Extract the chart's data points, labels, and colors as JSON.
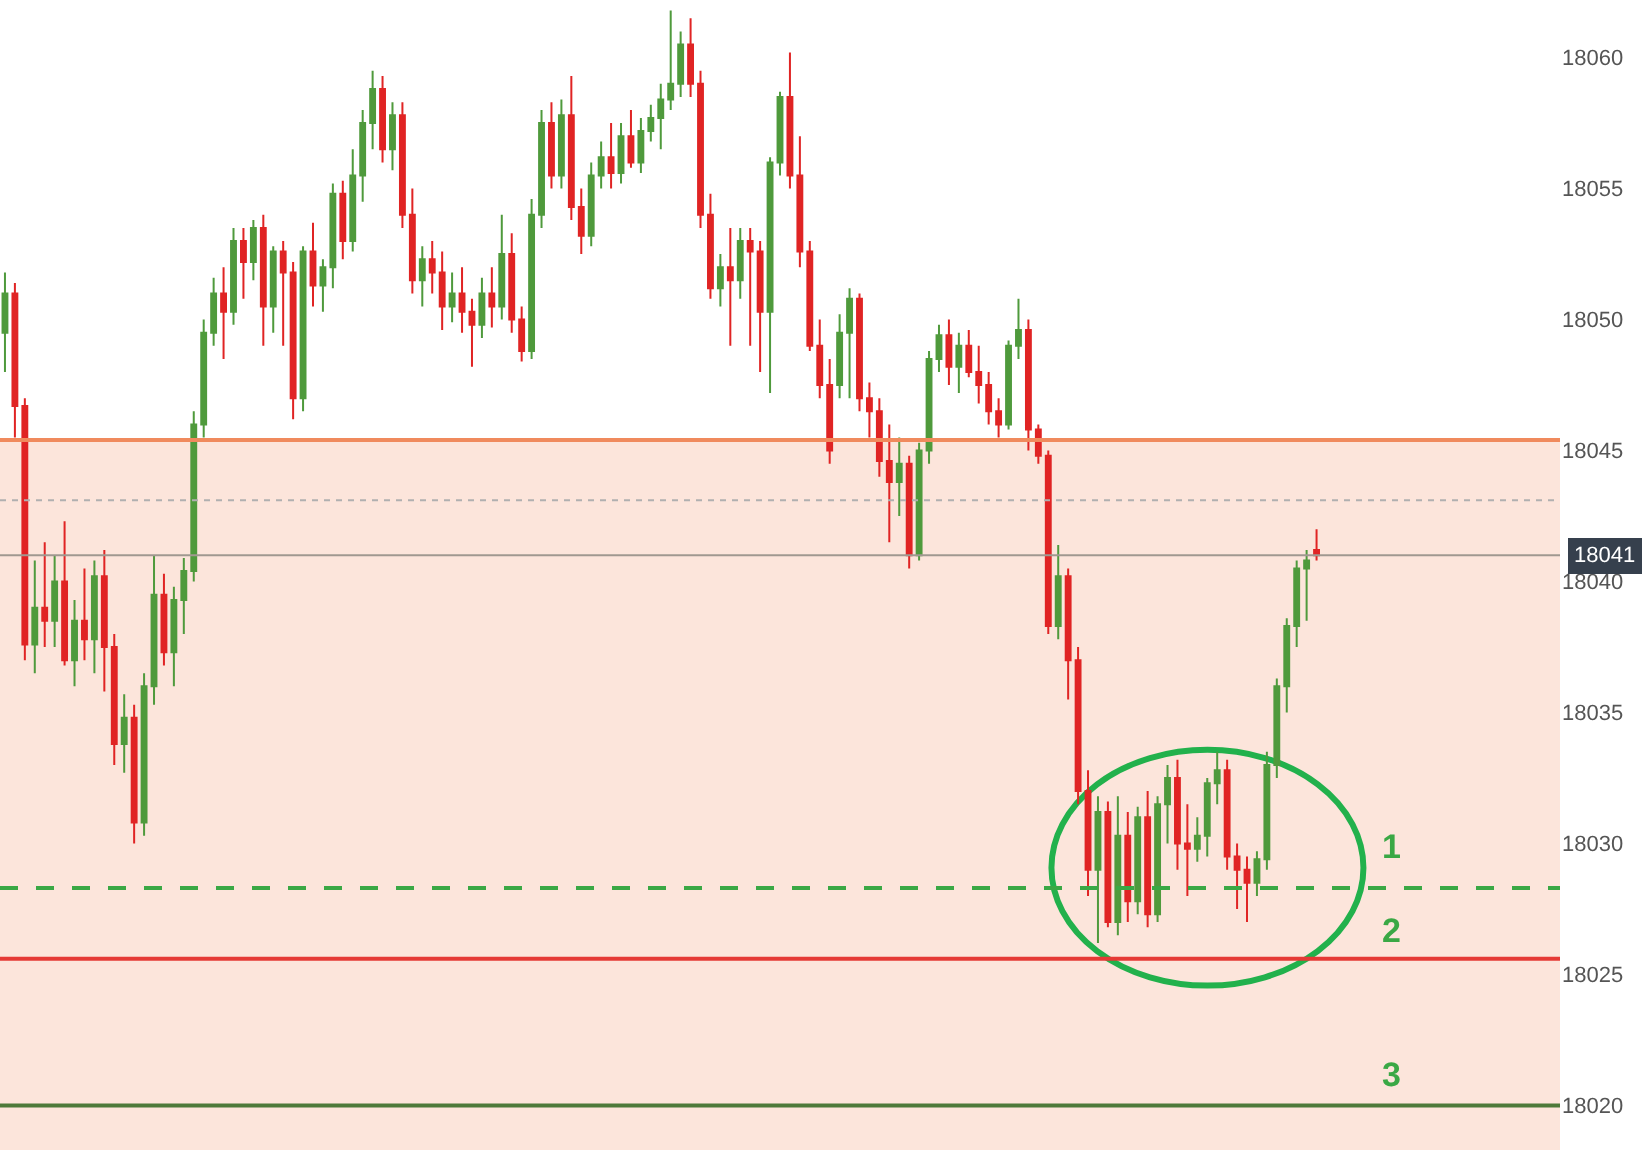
{
  "chart_data": {
    "type": "candlestick",
    "categories": [
      null,
      null,
      null,
      null,
      null,
      null,
      null,
      null,
      null,
      null,
      null,
      null,
      null,
      null,
      null,
      null,
      null,
      null,
      null,
      null,
      null,
      null,
      null,
      null,
      null,
      null,
      null,
      null,
      null,
      null,
      null,
      null,
      null,
      null,
      null,
      null,
      null,
      null,
      null,
      null,
      null,
      null,
      null,
      null,
      null,
      null,
      null,
      null,
      null,
      null,
      null,
      null,
      null,
      null,
      null,
      null,
      null,
      null,
      null,
      null,
      null,
      null,
      null,
      null,
      null,
      null,
      null,
      null,
      null,
      null,
      null,
      null,
      null,
      null,
      null,
      null,
      null,
      null,
      null,
      null,
      null,
      null,
      null,
      null,
      null,
      null,
      null,
      null,
      null,
      null,
      null,
      null,
      null,
      null,
      null,
      null,
      null,
      null,
      null,
      null,
      null,
      null,
      null,
      null,
      null,
      null,
      null,
      null,
      null,
      null,
      null,
      null,
      null,
      null,
      null,
      null,
      null,
      null,
      null,
      null,
      null,
      null,
      null,
      null,
      null,
      null,
      null,
      null,
      null,
      null,
      null,
      null,
      null,
      null,
      null,
      null,
      null,
      null,
      null,
      null,
      null,
      null,
      null,
      null,
      null,
      null,
      null,
      null,
      null,
      null,
      null,
      null,
      null,
      null,
      null,
      null,
      null
    ],
    "ohlc": [
      [
        18049.5,
        18051.8,
        18048,
        18051
      ],
      [
        18051,
        18051.4,
        18045.5,
        18046.7
      ],
      [
        18046.7,
        18047,
        18037,
        18037.6
      ],
      [
        18037.6,
        18040.8,
        18036.5,
        18039
      ],
      [
        18039,
        18041.5,
        18037.5,
        18038.5
      ],
      [
        18038.5,
        18041,
        18037.5,
        18040
      ],
      [
        18040,
        18042.3,
        18036.8,
        18037
      ],
      [
        18037,
        18039.3,
        18036,
        18038.5
      ],
      [
        18038.5,
        18040.5,
        18037,
        18037.8
      ],
      [
        18037.8,
        18040.8,
        18036.5,
        18040.2
      ],
      [
        18040.2,
        18041.2,
        18035.8,
        18037.5
      ],
      [
        18037.5,
        18038,
        18033,
        18033.8
      ],
      [
        18033.8,
        18035.7,
        18032.7,
        18034.8
      ],
      [
        18034.8,
        18035.3,
        18030,
        18030.8
      ],
      [
        18030.8,
        18036.5,
        18030.3,
        18036
      ],
      [
        18036,
        18041,
        18035.3,
        18039.5
      ],
      [
        18039.5,
        18040.3,
        18036.8,
        18037.3
      ],
      [
        18037.3,
        18039.8,
        18036,
        18039.3
      ],
      [
        18039.3,
        18040.9,
        18038,
        18040.4
      ],
      [
        18040.4,
        18046.5,
        18040,
        18046
      ],
      [
        18046,
        18050,
        18045.5,
        18049.5
      ],
      [
        18049.5,
        18051.6,
        18049,
        18051
      ],
      [
        18051,
        18052,
        18048.5,
        18050.3
      ],
      [
        18050.3,
        18053.5,
        18049.8,
        18053
      ],
      [
        18053,
        18053.5,
        18050.8,
        18052.2
      ],
      [
        18052.2,
        18053.8,
        18051.5,
        18053.5
      ],
      [
        18053.5,
        18054,
        18049,
        18050.5
      ],
      [
        18050.5,
        18052.8,
        18049.5,
        18052.6
      ],
      [
        18052.6,
        18053,
        18049,
        18051.8
      ],
      [
        18051.8,
        18052.2,
        18046.2,
        18047
      ],
      [
        18047,
        18052.8,
        18046.5,
        18052.6
      ],
      [
        18052.6,
        18053.7,
        18050.5,
        18051.3
      ],
      [
        18051.3,
        18052.3,
        18050.3,
        18052
      ],
      [
        18052,
        18055.2,
        18051.2,
        18054.8
      ],
      [
        18054.8,
        18055.3,
        18052.3,
        18053
      ],
      [
        18053,
        18056.5,
        18052.6,
        18055.5
      ],
      [
        18055.5,
        18058,
        18054.5,
        18057.5
      ],
      [
        18057.5,
        18059.5,
        18056.5,
        18058.8
      ],
      [
        18058.8,
        18059.3,
        18056,
        18056.5
      ],
      [
        18056.5,
        18058.3,
        18055.7,
        18057.8
      ],
      [
        18057.8,
        18058.3,
        18053.5,
        18054
      ],
      [
        18054,
        18055,
        18051,
        18051.5
      ],
      [
        18051.5,
        18052.8,
        18050.5,
        18052.3
      ],
      [
        18052.3,
        18053,
        18051,
        18051.8
      ],
      [
        18051.8,
        18052.6,
        18049.6,
        18050.5
      ],
      [
        18050.5,
        18051.8,
        18049.9,
        18051
      ],
      [
        18051,
        18052,
        18049.5,
        18050.3
      ],
      [
        18050.3,
        18050.8,
        18048.2,
        18049.8
      ],
      [
        18049.8,
        18051.6,
        18049.3,
        18051
      ],
      [
        18051,
        18052,
        18049.7,
        18050.5
      ],
      [
        18050.5,
        18054,
        18050,
        18052.5
      ],
      [
        18052.5,
        18053.3,
        18049.5,
        18050
      ],
      [
        18050,
        18050.5,
        18048.4,
        18048.8
      ],
      [
        18048.8,
        18054.6,
        18048.5,
        18054
      ],
      [
        18054,
        18058,
        18053.5,
        18057.5
      ],
      [
        18057.5,
        18058.3,
        18055,
        18055.5
      ],
      [
        18055.5,
        18058.4,
        18055,
        18057.8
      ],
      [
        18057.8,
        18059.3,
        18053.8,
        18054.3
      ],
      [
        18054.3,
        18055,
        18052.5,
        18053.2
      ],
      [
        18053.2,
        18056,
        18052.8,
        18055.5
      ],
      [
        18055.5,
        18056.8,
        18055,
        18056.2
      ],
      [
        18056.2,
        18057.5,
        18055,
        18055.6
      ],
      [
        18055.6,
        18057.5,
        18055.2,
        18057
      ],
      [
        18057,
        18058,
        18055.8,
        18056
      ],
      [
        18056,
        18057.7,
        18055.6,
        18057.2
      ],
      [
        18057.2,
        18058.2,
        18056.8,
        18057.7
      ],
      [
        18057.7,
        18059,
        18056.5,
        18058.4
      ],
      [
        18058.4,
        18061.8,
        18058,
        18059
      ],
      [
        18059,
        18061,
        18058.5,
        18060.5
      ],
      [
        18060.5,
        18061.5,
        18058.5,
        18059
      ],
      [
        18059,
        18059.5,
        18053.5,
        18054
      ],
      [
        18054,
        18054.8,
        18050.8,
        18051.2
      ],
      [
        18051.2,
        18052.5,
        18050.5,
        18052
      ],
      [
        18052,
        18053.5,
        18049,
        18051.5
      ],
      [
        18051.5,
        18053.5,
        18050.8,
        18053
      ],
      [
        18053,
        18053.5,
        18049,
        18052.6
      ],
      [
        18052.6,
        18053,
        18048,
        18050.3
      ],
      [
        18050.3,
        18056.2,
        18047.2,
        18056
      ],
      [
        18056,
        18058.7,
        18055.5,
        18058.5
      ],
      [
        18058.5,
        18060.2,
        18055,
        18055.5
      ],
      [
        18055.5,
        18057,
        18052,
        18052.6
      ],
      [
        18052.6,
        18053,
        18048.8,
        18049
      ],
      [
        18049,
        18050,
        18047,
        18047.5
      ],
      [
        18047.5,
        18048.5,
        18044.5,
        18045
      ],
      [
        18047.5,
        18050.2,
        18047,
        18049.5
      ],
      [
        18049.5,
        18051.2,
        18047,
        18050.8
      ],
      [
        18050.8,
        18051,
        18046.5,
        18047
      ],
      [
        18047,
        18047.6,
        18045.5,
        18046.5
      ],
      [
        18046.5,
        18047,
        18044,
        18044.6
      ],
      [
        18044.6,
        18046,
        18041.5,
        18043.8
      ],
      [
        18043.8,
        18045.5,
        18042.5,
        18044.5
      ],
      [
        18044.5,
        18044.8,
        18040.5,
        18041
      ],
      [
        18041,
        18045.3,
        18040.8,
        18045
      ],
      [
        18045,
        18048.8,
        18044.5,
        18048.5
      ],
      [
        18048.5,
        18049.8,
        18048,
        18049.4
      ],
      [
        18049.4,
        18050,
        18047.5,
        18048.2
      ],
      [
        18048.2,
        18049.5,
        18047.2,
        18049
      ],
      [
        18049,
        18049.6,
        18047.8,
        18048
      ],
      [
        18048,
        18049,
        18046.8,
        18047.5
      ],
      [
        18047.5,
        18048,
        18046,
        18046.5
      ],
      [
        18046.5,
        18047,
        18045.5,
        18046
      ],
      [
        18046,
        18049.2,
        18045.8,
        18049
      ],
      [
        18049,
        18050.8,
        18048.5,
        18049.6
      ],
      [
        18049.6,
        18050,
        18045,
        18045.8
      ],
      [
        18045.8,
        18046,
        18044.5,
        18044.8
      ],
      [
        18044.8,
        18045,
        18038,
        18038.3
      ],
      [
        18038.3,
        18041.4,
        18037.8,
        18040.2
      ],
      [
        18040.2,
        18040.5,
        18035.5,
        18037
      ],
      [
        18037,
        18037.5,
        18031.5,
        18032
      ],
      [
        18032,
        18032.8,
        18028,
        18029
      ],
      [
        18029,
        18031.8,
        18026.2,
        18031.2
      ],
      [
        18031.2,
        18031.6,
        18026.8,
        18027
      ],
      [
        18027,
        18031.8,
        18026.5,
        18030.3
      ],
      [
        18030.3,
        18031.2,
        18027,
        18027.8
      ],
      [
        18027.8,
        18031.4,
        18027.3,
        18031
      ],
      [
        18031,
        18032,
        18026.8,
        18027.3
      ],
      [
        18027.3,
        18031.8,
        18027,
        18031.5
      ],
      [
        18031.5,
        18033,
        18030,
        18032.5
      ],
      [
        18032.5,
        18033.2,
        18029,
        18030
      ],
      [
        18030,
        18031.5,
        18028,
        18029.8
      ],
      [
        18029.8,
        18031,
        18029.3,
        18030.3
      ],
      [
        18030.3,
        18032.5,
        18029.5,
        18032.3
      ],
      [
        18032.3,
        18033.5,
        18031.5,
        18032.8
      ],
      [
        18032.8,
        18033.2,
        18029,
        18029.5
      ],
      [
        18029.5,
        18030,
        18027.5,
        18029
      ],
      [
        18029,
        18029.5,
        18027,
        18028.5
      ],
      [
        18028.5,
        18029.7,
        18028,
        18029.4
      ],
      [
        18029.4,
        18033.5,
        18029,
        18033
      ],
      [
        18033,
        18036.3,
        18032.5,
        18036
      ],
      [
        18036,
        18038.6,
        18035,
        18038.3
      ],
      [
        18038.3,
        18040.8,
        18037.5,
        18040.5
      ],
      [
        18040.5,
        18041.2,
        18038.5,
        18040.8
      ],
      [
        18041.2,
        18042,
        18040.8,
        18041
      ],
      null,
      null,
      null,
      null,
      null,
      null,
      null,
      null,
      null,
      null,
      null,
      null,
      null,
      null,
      null,
      null,
      null,
      null,
      null,
      null,
      null,
      null,
      null,
      null
    ],
    "bands": [
      {
        "axis": "y",
        "from": 18018.3,
        "to": 18045.4,
        "color": "#f08a5d"
      }
    ],
    "ylim": [
      18018.3,
      18062.2
    ],
    "yticks": [
      18020,
      18025,
      18030,
      18035,
      18040,
      18045,
      18050,
      18055,
      18060
    ],
    "ref_lines": [
      {
        "axis": "y",
        "value": 18045.4,
        "color": "#f08a5d",
        "line_style": "solid"
      },
      {
        "axis": "y",
        "value": 18043.1,
        "color": "#b0b0b0",
        "line_style": "dotted"
      },
      {
        "axis": "y",
        "value": 18041,
        "color": "#a09890",
        "line_style": "solid",
        "label": "18041"
      },
      {
        "axis": "y",
        "value": 18028.3,
        "color": "#3aa845",
        "line_style": "dashed"
      },
      {
        "axis": "y",
        "value": 18025.6,
        "color": "#e53935",
        "line_style": "solid"
      },
      {
        "axis": "y",
        "value": 18020,
        "color": "#4e7a3a",
        "line_style": "solid"
      }
    ],
    "annotations": [
      "1",
      "2",
      "3"
    ],
    "grid": false
  }
}
